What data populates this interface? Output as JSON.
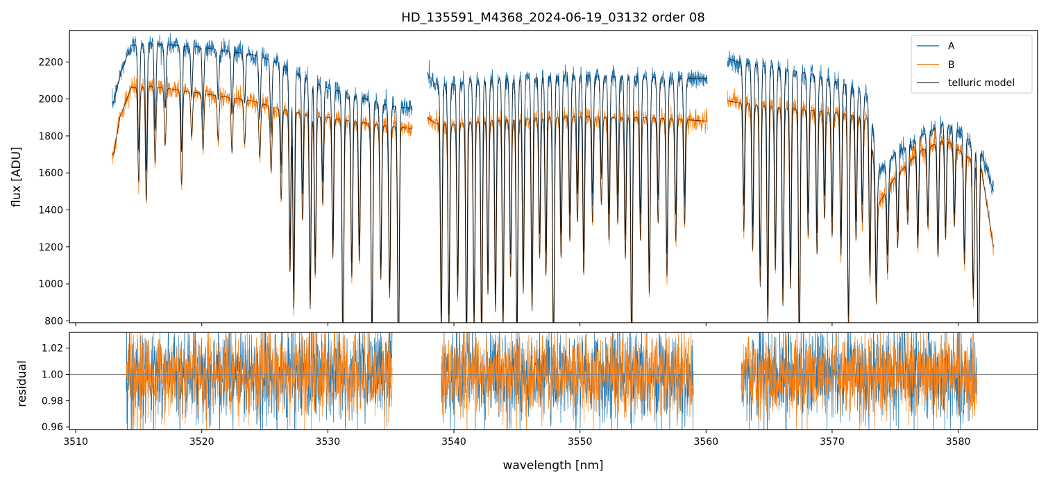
{
  "figure": {
    "title": "HD_135591_M4368_2024-06-19_03132  order 08"
  },
  "colors": {
    "A": "#1f77b4",
    "B": "#ff7f0e",
    "telluric": "#000000",
    "zero_line": "#808080"
  },
  "chart_data": [
    {
      "type": "line",
      "panel": "top",
      "title": "HD_135591_M4368_2024-06-19_03132  order 08",
      "xlabel": "",
      "ylabel": "flux [ADU]",
      "xlim": [
        3509.5,
        3586.3
      ],
      "ylim": [
        790,
        2370
      ],
      "yticks": [
        800,
        1000,
        1200,
        1400,
        1600,
        1800,
        2000,
        2200
      ],
      "xticks": [
        3510,
        3520,
        3530,
        3540,
        3550,
        3560,
        3570,
        3580
      ],
      "xtick_labels_shown": false,
      "legend_position": "top-right",
      "grid": false,
      "segments": [
        [
          3512.9,
          3536.7
        ],
        [
          3537.9,
          3560.1
        ],
        [
          3561.7,
          3582.8
        ]
      ],
      "continuum": {
        "A": {
          "x": [
            3513.0,
            3513.6,
            3514.4,
            3516.0,
            3518.0,
            3520.0,
            3522.0,
            3524.0,
            3526.0,
            3528.0,
            3530.0,
            3532.0,
            3534.0,
            3535.2,
            3536.7,
            3537.9,
            3538.5,
            3540.0,
            3542.0,
            3545.0,
            3548.0,
            3550.0,
            3552.0,
            3555.0,
            3558.0,
            3560.1,
            3561.7,
            3562.5,
            3565.0,
            3568.0,
            3571.0,
            3573.0,
            3573.6,
            3575.0,
            3577.0,
            3579.0,
            3580.5,
            3581.8,
            3582.8
          ],
          "y": [
            1980,
            2150,
            2290,
            2300,
            2290,
            2280,
            2260,
            2240,
            2200,
            2120,
            2060,
            2020,
            1980,
            1960,
            1950,
            2140,
            2080,
            2080,
            2100,
            2110,
            2120,
            2130,
            2120,
            2120,
            2110,
            2110,
            2220,
            2200,
            2180,
            2140,
            2080,
            2020,
            1600,
            1700,
            1800,
            1870,
            1800,
            1720,
            1500
          ]
        },
        "B": {
          "x": [
            3513.0,
            3513.5,
            3514.4,
            3516.0,
            3518.0,
            3520.0,
            3522.0,
            3524.0,
            3526.0,
            3528.0,
            3530.0,
            3532.0,
            3534.0,
            3535.2,
            3536.7,
            3537.9,
            3538.5,
            3540.0,
            3542.0,
            3545.0,
            3548.0,
            3550.0,
            3552.0,
            3555.0,
            3558.0,
            3560.1,
            3561.7,
            3562.5,
            3565.0,
            3568.0,
            3571.0,
            3573.0,
            3573.6,
            3575.0,
            3577.0,
            3579.0,
            3580.5,
            3581.8,
            3582.8
          ],
          "y": [
            1700,
            1900,
            2060,
            2070,
            2050,
            2030,
            2010,
            1990,
            1950,
            1920,
            1900,
            1880,
            1860,
            1850,
            1840,
            1900,
            1870,
            1860,
            1880,
            1890,
            1900,
            1910,
            1900,
            1900,
            1890,
            1880,
            1990,
            1980,
            1960,
            1940,
            1920,
            1890,
            1420,
            1580,
            1720,
            1780,
            1700,
            1640,
            1200
          ]
        }
      },
      "absorption_lines": {
        "wavelength": [
          3515.0,
          3515.6,
          3516.3,
          3517.1,
          3518.4,
          3519.2,
          3520.1,
          3521.3,
          3522.4,
          3523.4,
          3524.6,
          3525.5,
          3526.3,
          3527.0,
          3527.3,
          3528.0,
          3528.6,
          3529.0,
          3529.6,
          3530.4,
          3531.2,
          3531.9,
          3532.5,
          3533.5,
          3534.2,
          3534.9,
          3535.6,
          3539.0,
          3539.6,
          3540.3,
          3541.0,
          3541.6,
          3542.2,
          3542.7,
          3543.3,
          3543.9,
          3544.5,
          3545.0,
          3545.5,
          3546.2,
          3546.8,
          3547.3,
          3547.9,
          3548.5,
          3549.2,
          3549.8,
          3550.3,
          3551.0,
          3551.7,
          3552.3,
          3553.0,
          3553.6,
          3554.1,
          3554.8,
          3555.5,
          3556.2,
          3556.9,
          3557.6,
          3558.3,
          3563.0,
          3563.7,
          3564.3,
          3564.9,
          3565.5,
          3566.1,
          3566.7,
          3567.4,
          3568.1,
          3568.8,
          3569.4,
          3570.0,
          3570.7,
          3571.3,
          3571.9,
          3572.4,
          3573.0,
          3573.5,
          3574.4,
          3575.2,
          3576.0,
          3576.8,
          3577.6,
          3578.4,
          3579.0,
          3579.7,
          3580.5,
          3581.2,
          3581.6
        ],
        "depth": [
          0.25,
          0.3,
          0.2,
          0.15,
          0.25,
          0.12,
          0.15,
          0.12,
          0.15,
          0.12,
          0.15,
          0.18,
          0.25,
          0.45,
          0.55,
          0.3,
          0.55,
          0.45,
          0.25,
          0.4,
          0.7,
          0.45,
          0.4,
          0.65,
          0.45,
          0.5,
          0.7,
          0.6,
          0.6,
          0.5,
          0.65,
          0.6,
          0.65,
          0.5,
          0.55,
          0.6,
          0.45,
          0.65,
          0.5,
          0.55,
          0.4,
          0.45,
          0.7,
          0.4,
          0.35,
          0.3,
          0.45,
          0.3,
          0.25,
          0.35,
          0.3,
          0.4,
          0.7,
          0.35,
          0.5,
          0.3,
          0.45,
          0.35,
          0.3,
          0.35,
          0.4,
          0.5,
          0.6,
          0.45,
          0.55,
          0.5,
          0.7,
          0.35,
          0.4,
          0.3,
          0.35,
          0.4,
          0.6,
          0.35,
          0.3,
          0.45,
          0.4,
          0.3,
          0.25,
          0.2,
          0.3,
          0.25,
          0.35,
          0.3,
          0.25,
          0.35,
          0.45,
          0.7
        ]
      },
      "series": [
        {
          "name": "A",
          "color": "#1f77b4"
        },
        {
          "name": "B",
          "color": "#ff7f0e"
        },
        {
          "name": "telluric model",
          "color": "#000000"
        }
      ]
    },
    {
      "type": "line",
      "panel": "bottom",
      "xlabel": "wavelength [nm]",
      "ylabel": "residual",
      "xlim": [
        3509.5,
        3586.3
      ],
      "ylim": [
        0.958,
        1.032
      ],
      "yticks": [
        0.96,
        0.98,
        1.0,
        1.02
      ],
      "xticks": [
        3510,
        3520,
        3530,
        3540,
        3550,
        3560,
        3570,
        3580
      ],
      "reference_line": 1.0,
      "grid": false,
      "segments": [
        [
          3514.0,
          3535.1
        ],
        [
          3539.0,
          3559.0
        ],
        [
          3562.8,
          3581.5
        ]
      ],
      "noise_sigma": {
        "A": 0.018,
        "B": 0.016
      },
      "series": [
        {
          "name": "A",
          "color": "#1f77b4"
        },
        {
          "name": "B",
          "color": "#ff7f0e"
        }
      ]
    }
  ],
  "legend": {
    "items": [
      {
        "label": "A",
        "color": "#1f77b4"
      },
      {
        "label": "B",
        "color": "#ff7f0e"
      },
      {
        "label": "telluric model",
        "color": "#555555"
      }
    ]
  }
}
